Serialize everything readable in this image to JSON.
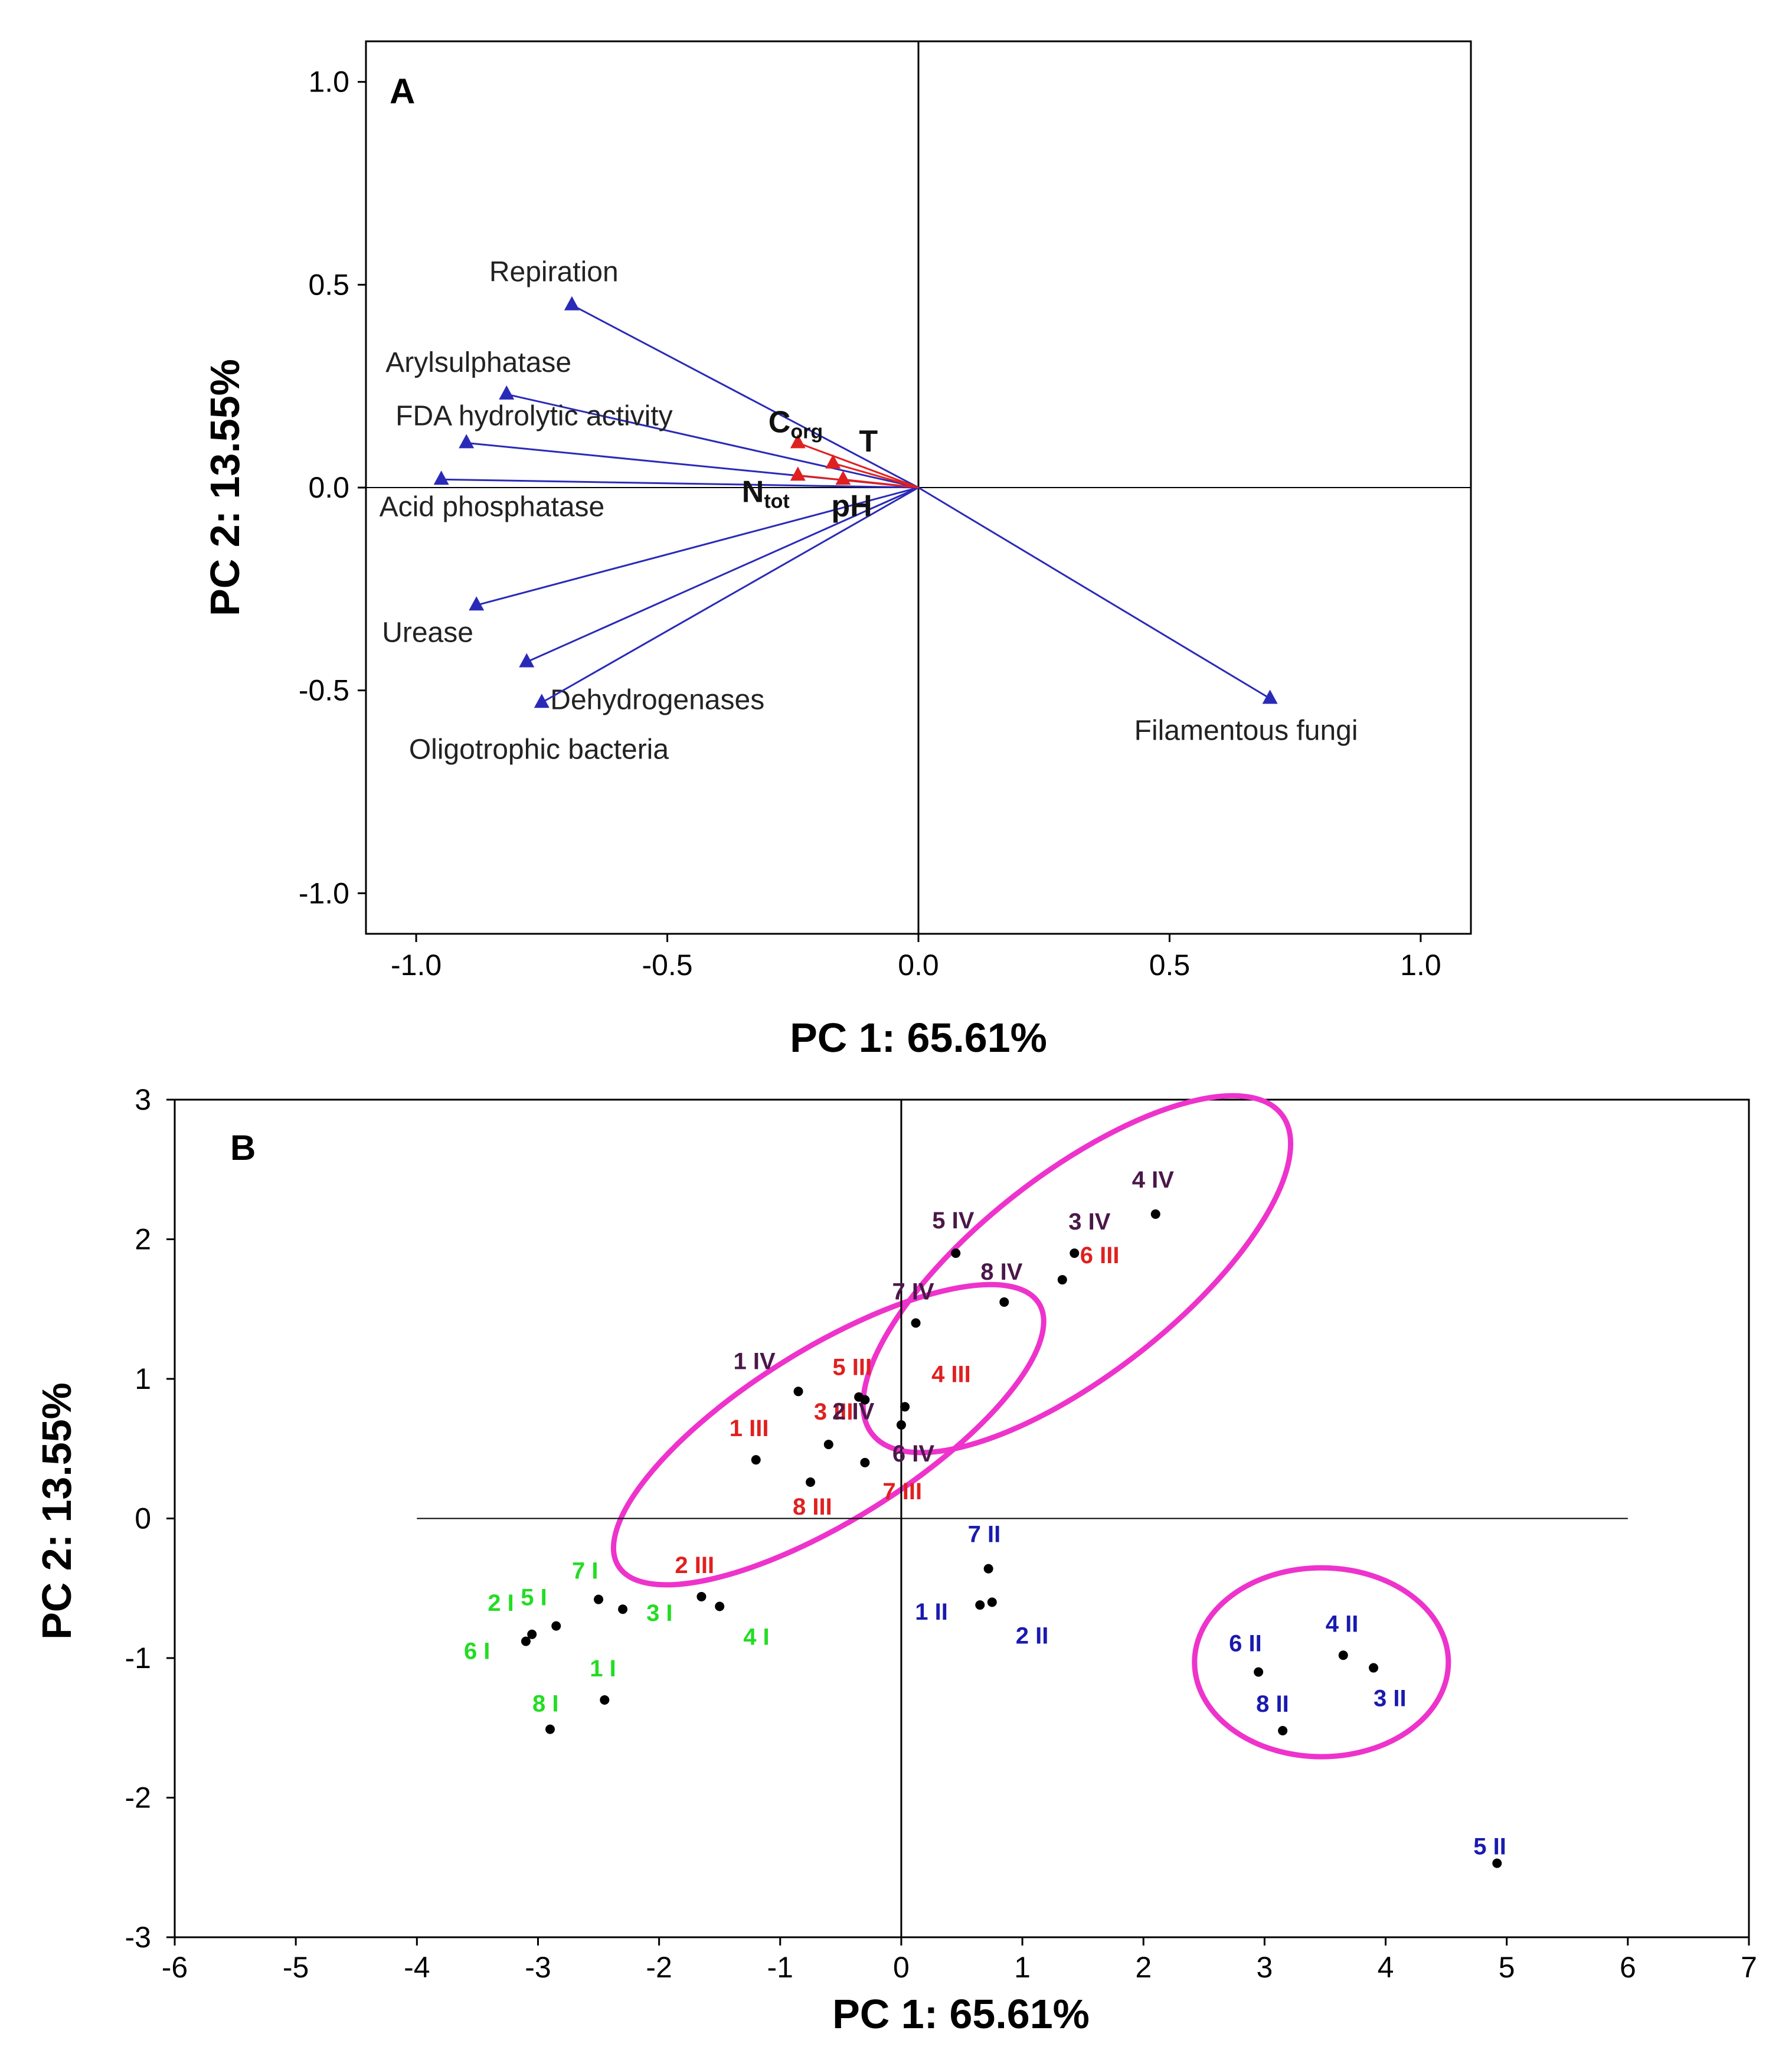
{
  "colors": {
    "blue": "#2a2ab8",
    "red": "#e02020",
    "purple": "#4a1848",
    "green": "#22dd22",
    "darkblue": "#1a1ab0",
    "magenta": "#ee33cc"
  },
  "chart_data": [
    {
      "panel": "A",
      "type": "scatter",
      "subtype": "loading-vectors",
      "xlabel": "PC 1: 65.61%",
      "ylabel": "PC 2: 13.55%",
      "xlim": [
        -1.1,
        1.1
      ],
      "ylim": [
        -1.1,
        1.1
      ],
      "xticks": [
        -1.0,
        -0.5,
        0.0,
        0.5,
        1.0
      ],
      "yticks": [
        -1.0,
        -0.5,
        0.0,
        0.5,
        1.0
      ],
      "xtick_labels": [
        "-1.0",
        "-0.5",
        "0.0",
        "0.5",
        "1.0"
      ],
      "ytick_labels": [
        "-1.0",
        "-0.5",
        "0.0",
        "0.5",
        "1.0"
      ],
      "vectors": [
        {
          "label": "Repiration",
          "x": -0.69,
          "y": 0.45,
          "color": "blue"
        },
        {
          "label": "Arylsulphatase",
          "x": -0.82,
          "y": 0.23,
          "color": "blue"
        },
        {
          "label": "FDA hydrolytic activity",
          "x": -0.9,
          "y": 0.11,
          "color": "blue"
        },
        {
          "label": "Acid phosphatase",
          "x": -0.95,
          "y": 0.02,
          "color": "blue"
        },
        {
          "label": "Urease",
          "x": -0.88,
          "y": -0.29,
          "color": "blue"
        },
        {
          "label": "Dehydrogenases",
          "x": -0.78,
          "y": -0.43,
          "color": "blue"
        },
        {
          "label": "Oligotrophic bacteria",
          "x": -0.75,
          "y": -0.53,
          "color": "blue"
        },
        {
          "label": "Filamentous fungi",
          "x": 0.7,
          "y": -0.52,
          "color": "blue"
        },
        {
          "label": "C",
          "sub": "org",
          "x": -0.24,
          "y": 0.11,
          "color": "red"
        },
        {
          "label": "T",
          "x": -0.17,
          "y": 0.06,
          "color": "red"
        },
        {
          "label": "N",
          "sub": "tot",
          "x": -0.24,
          "y": 0.03,
          "color": "red"
        },
        {
          "label": "pH",
          "x": -0.15,
          "y": 0.02,
          "color": "red"
        }
      ]
    },
    {
      "panel": "B",
      "type": "scatter",
      "subtype": "scores",
      "xlabel": "PC 1: 65.61%",
      "ylabel": "PC 2: 13.55%",
      "xlim": [
        -6,
        7
      ],
      "ylim": [
        -3,
        3
      ],
      "xticks": [
        -6,
        -5,
        -4,
        -3,
        -2,
        -1,
        0,
        1,
        2,
        3,
        4,
        5,
        6,
        7
      ],
      "yticks": [
        -3,
        -2,
        -1,
        0,
        1,
        2,
        3
      ],
      "xtick_labels": [
        "-6",
        "-5",
        "-4",
        "-3",
        "-2",
        "-1",
        "0",
        "1",
        "2",
        "3",
        "4",
        "5",
        "6",
        "7"
      ],
      "ytick_labels": [
        "-3",
        "-2",
        "-1",
        "0",
        "1",
        "2",
        "3"
      ],
      "points": [
        {
          "label": "1 I",
          "x": -2.45,
          "y": -1.3,
          "group": "I",
          "color": "green"
        },
        {
          "label": "2 I",
          "x": -3.05,
          "y": -0.83,
          "group": "I",
          "color": "green"
        },
        {
          "label": "3 I",
          "x": -2.3,
          "y": -0.65,
          "group": "I",
          "color": "green"
        },
        {
          "label": "4 I",
          "x": -1.5,
          "y": -0.63,
          "group": "I",
          "color": "green"
        },
        {
          "label": "5 I",
          "x": -2.85,
          "y": -0.77,
          "group": "I",
          "color": "green"
        },
        {
          "label": "6 I",
          "x": -3.1,
          "y": -0.88,
          "group": "I",
          "color": "green"
        },
        {
          "label": "7 I",
          "x": -2.5,
          "y": -0.58,
          "group": "I",
          "color": "green"
        },
        {
          "label": "8 I",
          "x": -2.9,
          "y": -1.51,
          "group": "I",
          "color": "green"
        },
        {
          "label": "1 II",
          "x": 0.65,
          "y": -0.62,
          "group": "II",
          "color": "darkblue"
        },
        {
          "label": "2 II",
          "x": 0.75,
          "y": -0.6,
          "group": "II",
          "color": "darkblue"
        },
        {
          "label": "3 II",
          "x": 3.9,
          "y": -1.07,
          "group": "II",
          "color": "darkblue"
        },
        {
          "label": "4 II",
          "x": 3.65,
          "y": -0.98,
          "group": "II",
          "color": "darkblue"
        },
        {
          "label": "5 II",
          "x": 4.92,
          "y": -2.47,
          "group": "II",
          "color": "darkblue"
        },
        {
          "label": "6 II",
          "x": 2.95,
          "y": -1.1,
          "group": "II",
          "color": "darkblue"
        },
        {
          "label": "7 II",
          "x": 0.72,
          "y": -0.36,
          "group": "II",
          "color": "darkblue"
        },
        {
          "label": "8 II",
          "x": 3.15,
          "y": -1.52,
          "group": "II",
          "color": "darkblue"
        },
        {
          "label": "1 III",
          "x": -1.2,
          "y": 0.42,
          "group": "III",
          "color": "red"
        },
        {
          "label": "2 III",
          "x": -1.65,
          "y": -0.56,
          "group": "III",
          "color": "red"
        },
        {
          "label": "3 III",
          "x": -0.6,
          "y": 0.53,
          "group": "III",
          "color": "red"
        },
        {
          "label": "4 III",
          "x": 0.03,
          "y": 0.8,
          "group": "III",
          "color": "red"
        },
        {
          "label": "5 III",
          "x": -0.3,
          "y": 0.85,
          "group": "III",
          "color": "red"
        },
        {
          "label": "6 III",
          "x": 1.33,
          "y": 1.71,
          "group": "III",
          "color": "red"
        },
        {
          "label": "7 III",
          "x": -0.3,
          "y": 0.4,
          "group": "III",
          "color": "red"
        },
        {
          "label": "8 III",
          "x": -0.75,
          "y": 0.26,
          "group": "III",
          "color": "red"
        },
        {
          "label": "1 IV",
          "x": -0.85,
          "y": 0.91,
          "group": "IV",
          "color": "purple"
        },
        {
          "label": "2 IV",
          "x": -0.35,
          "y": 0.87,
          "group": "IV",
          "color": "purple"
        },
        {
          "label": "3 IV",
          "x": 1.43,
          "y": 1.9,
          "group": "IV",
          "color": "purple"
        },
        {
          "label": "4 IV",
          "x": 2.1,
          "y": 2.18,
          "group": "IV",
          "color": "purple"
        },
        {
          "label": "5 IV",
          "x": 0.45,
          "y": 1.9,
          "group": "IV",
          "color": "purple"
        },
        {
          "label": "6 IV",
          "x": 0.0,
          "y": 0.67,
          "group": "IV",
          "color": "purple"
        },
        {
          "label": "7 IV",
          "x": 0.12,
          "y": 1.4,
          "group": "IV",
          "color": "purple"
        },
        {
          "label": "8 IV",
          "x": 0.85,
          "y": 1.55,
          "group": "IV",
          "color": "purple"
        }
      ],
      "ellipses": [
        {
          "name": "group-iv-upper",
          "cx": 1.45,
          "cy": 1.75,
          "color": "magenta"
        },
        {
          "name": "group-iii-center",
          "cx": -0.6,
          "cy": 0.6,
          "color": "magenta"
        },
        {
          "name": "group-ii-right",
          "cx": 3.47,
          "cy": -1.03,
          "color": "magenta"
        }
      ]
    }
  ]
}
